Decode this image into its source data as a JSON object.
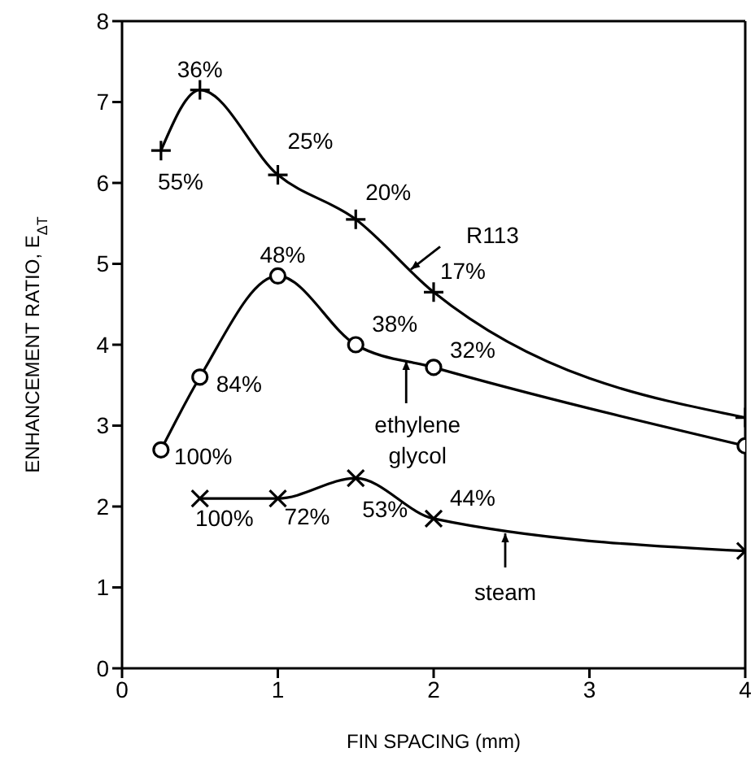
{
  "chart_data": {
    "type": "line",
    "xlabel": "FIN SPACING (mm)",
    "ylabel": "ENHANCEMENT RATIO, E$_{ΔT}$",
    "legend": "right",
    "xlim": [
      0,
      4
    ],
    "xticks": [
      0,
      1,
      2,
      3,
      4
    ],
    "ylim": [
      0,
      8
    ],
    "yticks": [
      0,
      1,
      2,
      3,
      4,
      5,
      6,
      7,
      8
    ],
    "series": [
      {
        "name": "R113",
        "color": "#000000",
        "marker": "cross",
        "x": [
          0.25,
          0.5,
          1,
          1.5,
          2,
          4
        ],
        "values": [
          6.4,
          7.15,
          6.1,
          5.55,
          4.65,
          3.1
        ]
      },
      {
        "name": "ethylene glycol",
        "color": "#000000",
        "marker": "circle",
        "x": [
          0.25,
          0.5,
          1,
          1.5,
          2,
          4
        ],
        "values": [
          2.7,
          3.6,
          4.85,
          4.0,
          3.72,
          2.75
        ]
      },
      {
        "name": "steam",
        "color": "#000000",
        "marker": "x",
        "x": [
          0.5,
          1,
          1.5,
          2,
          4
        ],
        "values": [
          2.1,
          2.1,
          2.35,
          1.85,
          1.45
        ]
      }
    ],
    "annotations": [
      {
        "text": "55%",
        "x": 0.25,
        "y": 6.4
      },
      {
        "text": "36%",
        "x": 0.5,
        "y": 7.15
      },
      {
        "text": "25%",
        "x": 1,
        "y": 6.1
      },
      {
        "text": "20%",
        "x": 1.5,
        "y": 5.55
      },
      {
        "text": "17%",
        "x": 2,
        "y": 4.65
      },
      {
        "text": "100%",
        "x": 0.25,
        "y": 2.7
      },
      {
        "text": "84%",
        "x": 0.5,
        "y": 3.6
      },
      {
        "text": "48%",
        "x": 1,
        "y": 4.85
      },
      {
        "text": "38%",
        "x": 1.5,
        "y": 4.0
      },
      {
        "text": "32%",
        "x": 2,
        "y": 3.72
      },
      {
        "text": "100%",
        "x": 0.5,
        "y": 2.1
      },
      {
        "text": "72%",
        "x": 1,
        "y": 2.1
      },
      {
        "text": "53%",
        "x": 1.5,
        "y": 2.35
      },
      {
        "text": "44%",
        "x": 2,
        "y": 1.85
      }
    ]
  }
}
